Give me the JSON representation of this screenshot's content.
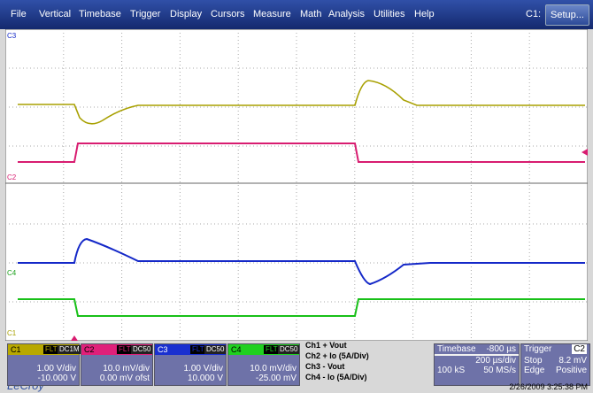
{
  "menu": [
    "File",
    "Vertical",
    "Timebase",
    "Trigger",
    "Display",
    "Cursors",
    "Measure",
    "Math",
    "Analysis",
    "Utilities",
    "Help"
  ],
  "active_channel": "C1:",
  "setup_button": "Setup...",
  "trace_labels": [
    "C3",
    "C2",
    "C4",
    "C1"
  ],
  "channels": [
    {
      "name": "C1",
      "filter": "FLT",
      "coupling": "DC1M",
      "scale": "1.00 V/div",
      "offset": "-10.000 V"
    },
    {
      "name": "C2",
      "filter": "FLT",
      "coupling": "DC50",
      "scale": "10.0 mV/div",
      "offset": "0.00 mV ofst"
    },
    {
      "name": "C3",
      "filter": "FLT",
      "coupling": "DC50",
      "scale": "1.00 V/div",
      "offset": "10.000 V"
    },
    {
      "name": "C4",
      "filter": "FLT",
      "coupling": "DC50",
      "scale": "10.0 mV/div",
      "offset": "-25.00 mV"
    }
  ],
  "legend": [
    "Ch1 + Vout",
    "Ch2 + Io (5A/Div)",
    "Ch3 - Vout",
    "Ch4 - Io (5A/Div)"
  ],
  "timebase": {
    "title": "Timebase",
    "delay": "-800 µs",
    "scale": "200 µs/div",
    "samples": "100 kS",
    "rate": "50 MS/s"
  },
  "trigger": {
    "title": "Trigger",
    "source": "C2",
    "mode": "Stop",
    "level": "8.2 mV",
    "type": "Edge",
    "slope": "Positive"
  },
  "brand": "LeCroy",
  "timestamp": "2/26/2009 3:25:38 PM"
}
